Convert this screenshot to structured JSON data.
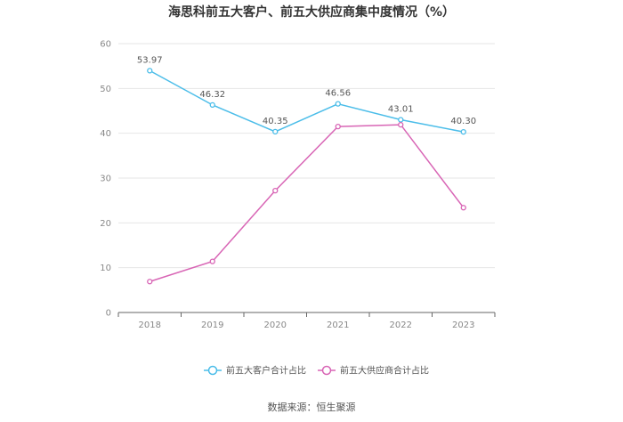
{
  "chart_data": {
    "type": "line",
    "title": "海思科前五大客户、前五大供应商集中度情况（%）",
    "categories": [
      "2018",
      "2019",
      "2020",
      "2021",
      "2022",
      "2023"
    ],
    "ylim": [
      0,
      60
    ],
    "yticks": [
      "0",
      "10",
      "20",
      "30",
      "40",
      "50",
      "60"
    ],
    "ytick_values": [
      0,
      10,
      20,
      30,
      40,
      50,
      60
    ],
    "grid": true,
    "legend_position": "bottom",
    "series": [
      {
        "name": "前五大客户合计占比",
        "color": "#4bbde9",
        "values": [
          53.97,
          46.32,
          40.35,
          46.56,
          43.01,
          40.3
        ],
        "labels": [
          "53.97",
          "46.32",
          "40.35",
          "46.56",
          "43.01",
          "40.30"
        ]
      },
      {
        "name": "前五大供应商合计占比",
        "color": "#d865b5",
        "values": [
          6.9,
          11.4,
          27.2,
          41.5,
          41.9,
          23.4
        ]
      }
    ],
    "source": "数据来源：恒生聚源"
  }
}
